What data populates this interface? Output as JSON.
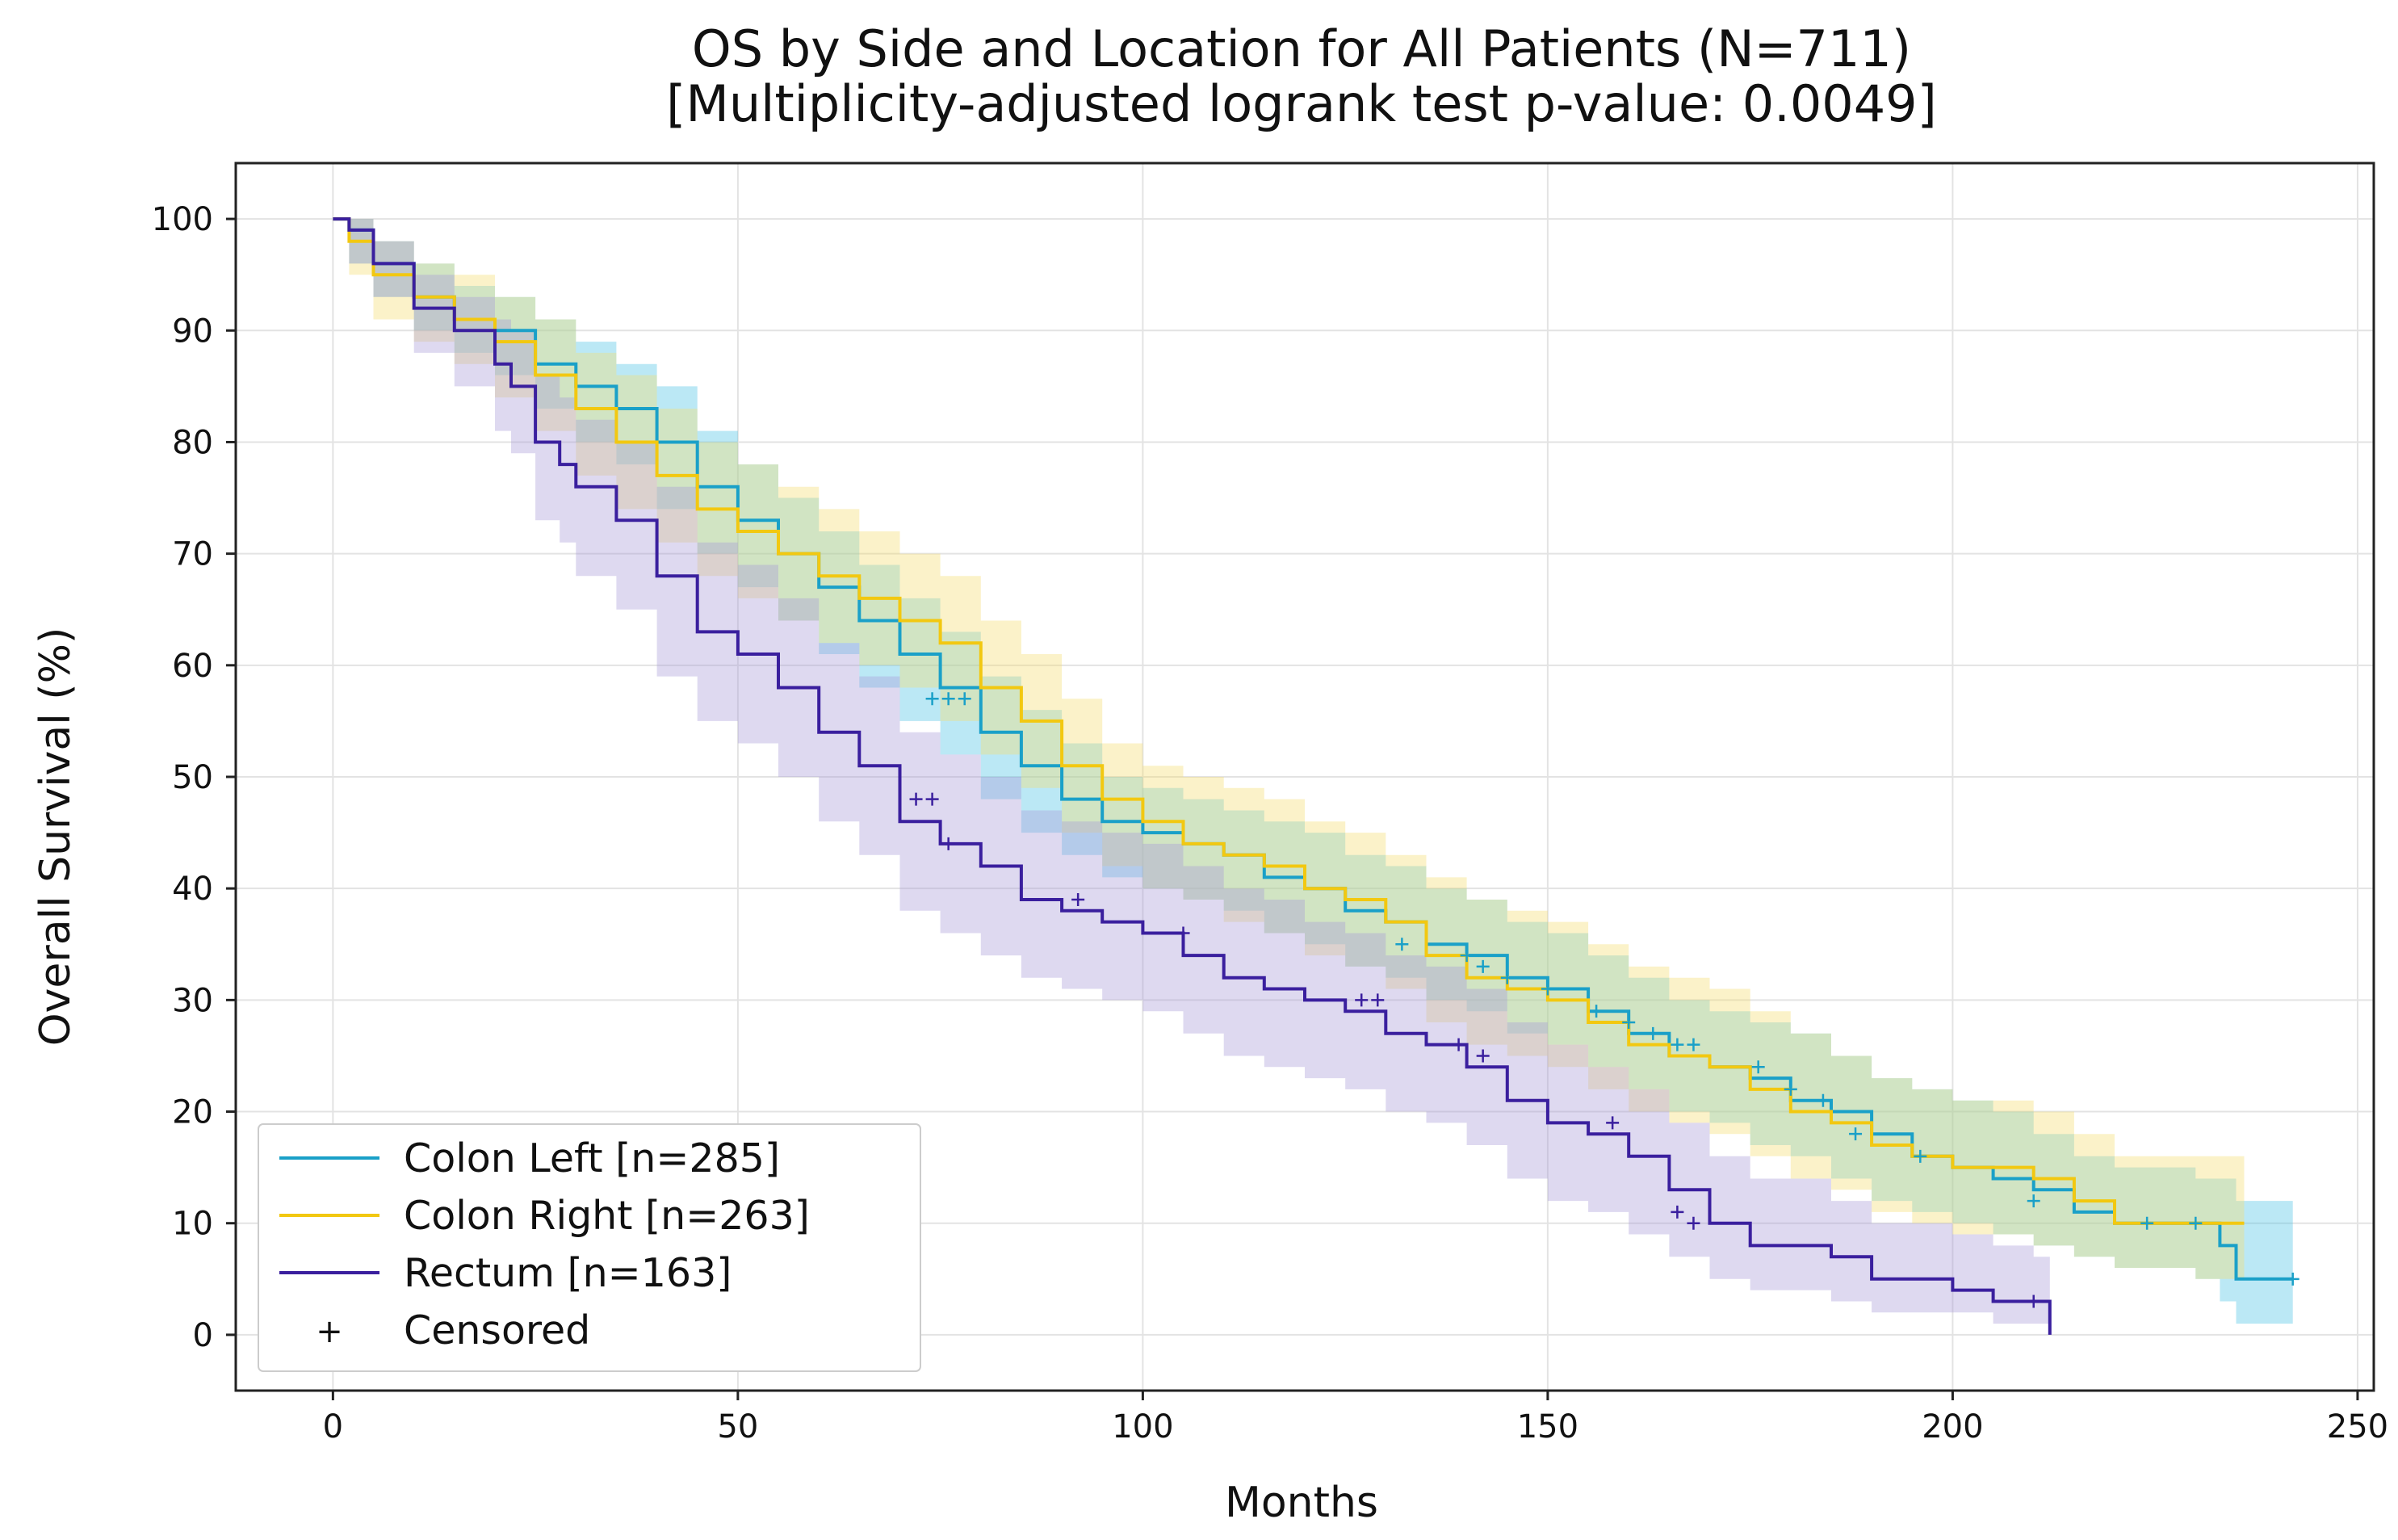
{
  "chart_data": {
    "type": "line",
    "subtype": "kaplan-meier",
    "title_line1": "OS by Side and Location for All Patients (N=711)",
    "title_line2": "[Multiplicity-adjusted logrank test p-value: 0.0049]",
    "xlabel": "Months",
    "ylabel": "Overall Survival (%)",
    "xlim": [
      -12,
      252
    ],
    "ylim": [
      -5,
      105
    ],
    "xticks": [
      0,
      50,
      100,
      150,
      200,
      250
    ],
    "yticks": [
      0,
      10,
      20,
      30,
      40,
      50,
      60,
      70,
      80,
      90,
      100
    ],
    "grid": true,
    "legend_position": "lower-left",
    "censor_marker": "+",
    "censor_label": "Censored",
    "series": [
      {
        "name": "Colon Left [n=285]",
        "color": "#1aa0c8",
        "fill_color": "#4cc3e6",
        "x": [
          0,
          2,
          5,
          10,
          15,
          20,
          25,
          30,
          35,
          40,
          45,
          50,
          55,
          60,
          65,
          70,
          75,
          80,
          85,
          90,
          95,
          100,
          105,
          110,
          115,
          120,
          125,
          130,
          135,
          140,
          145,
          150,
          155,
          160,
          165,
          170,
          175,
          180,
          185,
          190,
          195,
          200,
          205,
          210,
          215,
          220,
          225,
          230,
          233,
          235,
          242
        ],
        "y": [
          100,
          99,
          96,
          93,
          91,
          90,
          87,
          85,
          83,
          80,
          76,
          73,
          70,
          67,
          64,
          61,
          58,
          54,
          51,
          48,
          46,
          45,
          44,
          43,
          41,
          40,
          38,
          37,
          35,
          34,
          32,
          31,
          29,
          27,
          25,
          24,
          23,
          21,
          20,
          18,
          16,
          15,
          14,
          13,
          11,
          10,
          10,
          10,
          8,
          5,
          5
        ],
        "lower": [
          100,
          96,
          93,
          90,
          88,
          86,
          83,
          80,
          78,
          74,
          70,
          67,
          64,
          61,
          58,
          55,
          52,
          48,
          45,
          43,
          41,
          40,
          39,
          38,
          36,
          35,
          33,
          32,
          30,
          29,
          27,
          26,
          24,
          22,
          20,
          19,
          17,
          16,
          14,
          12,
          11,
          10,
          9,
          8,
          7,
          6,
          6,
          5,
          3,
          1,
          1
        ],
        "upper": [
          100,
          100,
          98,
          96,
          94,
          93,
          91,
          89,
          87,
          85,
          81,
          78,
          75,
          72,
          69,
          66,
          63,
          59,
          56,
          53,
          50,
          49,
          48,
          47,
          46,
          45,
          43,
          42,
          40,
          39,
          37,
          36,
          34,
          32,
          30,
          29,
          28,
          27,
          25,
          23,
          22,
          21,
          20,
          18,
          16,
          15,
          15,
          14,
          14,
          12,
          12
        ],
        "censored_x": [
          74,
          76,
          78,
          132,
          140,
          142,
          145,
          150,
          156,
          160,
          163,
          166,
          168,
          176,
          180,
          184,
          188,
          196,
          210,
          224,
          230,
          242
        ],
        "censored_y": [
          57,
          57,
          57,
          35,
          34,
          33,
          32,
          31,
          29,
          28,
          27,
          26,
          26,
          24,
          22,
          21,
          18,
          16,
          12,
          10,
          10,
          5
        ]
      },
      {
        "name": "Colon Right [n=263]",
        "color": "#f2c811",
        "fill_color": "#f5dc72",
        "x": [
          0,
          2,
          5,
          10,
          15,
          20,
          25,
          30,
          35,
          40,
          45,
          50,
          55,
          60,
          65,
          70,
          75,
          80,
          85,
          90,
          95,
          100,
          105,
          110,
          115,
          120,
          125,
          130,
          135,
          140,
          145,
          150,
          155,
          160,
          165,
          170,
          175,
          180,
          185,
          190,
          195,
          200,
          205,
          210,
          215,
          220,
          225,
          230,
          236
        ],
        "y": [
          100,
          98,
          95,
          93,
          91,
          89,
          86,
          83,
          80,
          77,
          74,
          72,
          70,
          68,
          66,
          64,
          62,
          58,
          55,
          51,
          48,
          46,
          44,
          43,
          42,
          40,
          39,
          37,
          34,
          32,
          31,
          30,
          28,
          26,
          25,
          24,
          22,
          20,
          19,
          17,
          16,
          15,
          15,
          14,
          12,
          10,
          10,
          10,
          10
        ],
        "lower": [
          100,
          95,
          91,
          89,
          87,
          84,
          81,
          77,
          74,
          71,
          68,
          66,
          64,
          62,
          60,
          58,
          55,
          52,
          49,
          45,
          42,
          40,
          39,
          37,
          36,
          34,
          33,
          31,
          28,
          26,
          25,
          24,
          22,
          20,
          19,
          18,
          16,
          14,
          13,
          11,
          10,
          9,
          9,
          8,
          7,
          6,
          6,
          5,
          5
        ],
        "upper": [
          100,
          100,
          98,
          96,
          95,
          93,
          91,
          88,
          86,
          83,
          80,
          78,
          76,
          74,
          72,
          70,
          68,
          64,
          61,
          57,
          53,
          51,
          50,
          49,
          48,
          46,
          45,
          43,
          41,
          39,
          38,
          37,
          35,
          33,
          32,
          31,
          29,
          27,
          25,
          23,
          22,
          21,
          21,
          20,
          18,
          16,
          16,
          16,
          16
        ]
      },
      {
        "name": "Rectum [n=163]",
        "color": "#3a1f9e",
        "fill_color": "#a79ad8",
        "x": [
          0,
          2,
          5,
          10,
          15,
          20,
          22,
          25,
          28,
          30,
          35,
          40,
          45,
          50,
          55,
          60,
          65,
          70,
          75,
          80,
          85,
          90,
          95,
          100,
          105,
          110,
          115,
          120,
          125,
          130,
          135,
          140,
          145,
          150,
          155,
          160,
          165,
          170,
          175,
          180,
          185,
          190,
          195,
          200,
          205,
          210,
          212
        ],
        "y": [
          100,
          99,
          96,
          92,
          90,
          87,
          85,
          80,
          78,
          76,
          73,
          68,
          63,
          61,
          58,
          54,
          51,
          46,
          44,
          42,
          39,
          38,
          37,
          36,
          34,
          32,
          31,
          30,
          29,
          27,
          26,
          24,
          21,
          19,
          18,
          16,
          13,
          10,
          8,
          8,
          7,
          5,
          5,
          4,
          3,
          3,
          0
        ],
        "lower": [
          100,
          96,
          93,
          88,
          85,
          81,
          79,
          73,
          71,
          68,
          65,
          59,
          55,
          53,
          50,
          46,
          43,
          38,
          36,
          34,
          32,
          31,
          30,
          29,
          27,
          25,
          24,
          23,
          22,
          20,
          19,
          17,
          14,
          12,
          11,
          9,
          7,
          5,
          4,
          4,
          3,
          2,
          2,
          2,
          1,
          1,
          1
        ],
        "upper": [
          100,
          100,
          98,
          95,
          93,
          91,
          90,
          86,
          84,
          82,
          80,
          76,
          71,
          69,
          66,
          62,
          59,
          54,
          52,
          50,
          47,
          46,
          45,
          44,
          42,
          40,
          39,
          37,
          36,
          34,
          33,
          31,
          28,
          26,
          24,
          22,
          19,
          16,
          14,
          14,
          12,
          10,
          10,
          9,
          8,
          7,
          7
        ],
        "censored_x": [
          72,
          74,
          76,
          92,
          105,
          127,
          129,
          139,
          142,
          158,
          166,
          168,
          210
        ],
        "censored_y": [
          48,
          48,
          44,
          39,
          36,
          30,
          30,
          26,
          25,
          19,
          11,
          10,
          3
        ]
      }
    ]
  }
}
